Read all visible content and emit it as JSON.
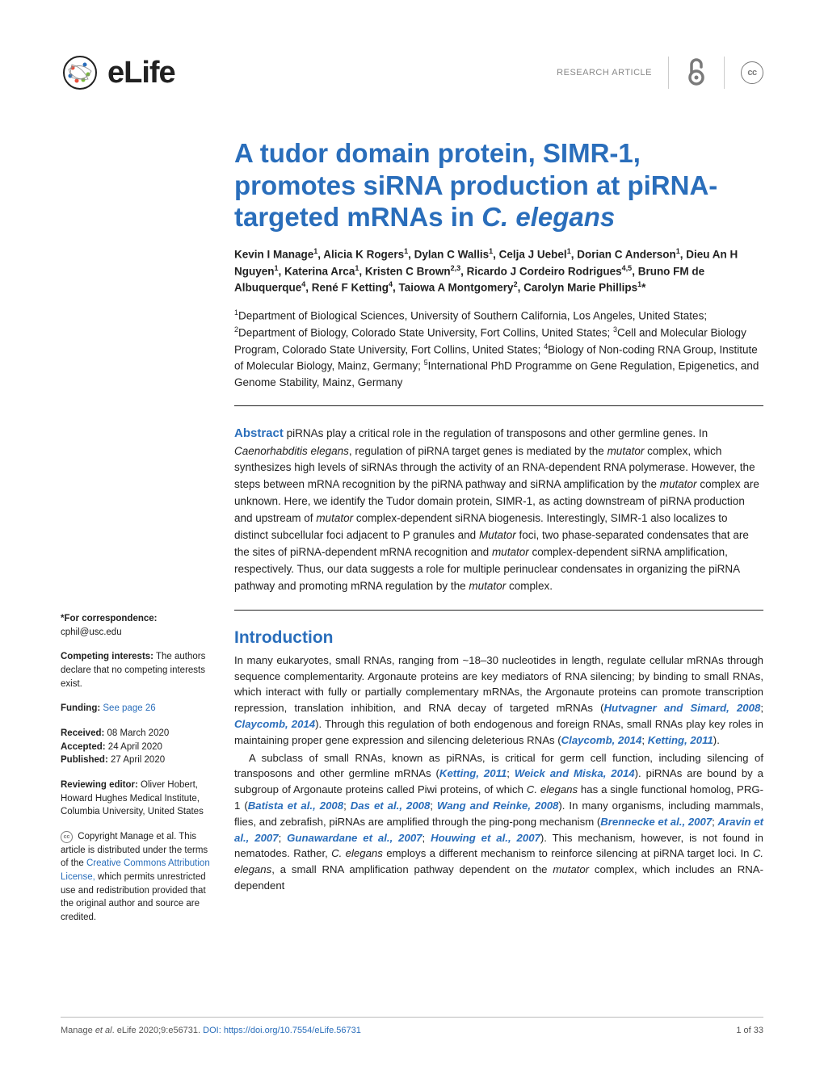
{
  "header": {
    "journal": "eLife",
    "section_label": "RESEARCH ARTICLE",
    "cc_label": "cc"
  },
  "title": {
    "line1": "A tudor domain protein, SIMR-1, promotes siRNA production at piRNA-targeted mRNAs in ",
    "line2_italic": "C. elegans"
  },
  "authors_html": "Kevin I Manage<sup>1</sup>, Alicia K Rogers<sup>1</sup>, Dylan C Wallis<sup>1</sup>, Celja J Uebel<sup>1</sup>, Dorian C Anderson<sup>1</sup>, Dieu An H Nguyen<sup>1</sup>, Katerina Arca<sup>1</sup>, Kristen C Brown<sup>2,3</sup>, Ricardo J Cordeiro Rodrigues<sup>4,5</sup>, Bruno FM de Albuquerque<sup>4</sup>, René F Ketting<sup>4</sup>, Taiowa A Montgomery<sup>2</sup>, Carolyn Marie Phillips<sup>1</sup>*",
  "affiliations_html": "<sup>1</sup>Department of Biological Sciences, University of Southern California, Los Angeles, United States; <sup>2</sup>Department of Biology, Colorado State University, Fort Collins, United States; <sup>3</sup>Cell and Molecular Biology Program, Colorado State University, Fort Collins, United States; <sup>4</sup>Biology of Non-coding RNA Group, Institute of Molecular Biology, Mainz, Germany; <sup>5</sup>International PhD Programme on Gene Regulation, Epigenetics, and Genome Stability, Mainz, Germany",
  "abstract": {
    "label": "Abstract",
    "text_html": " piRNAs play a critical role in the regulation of transposons and other germline genes. In <span class='italic'>Caenorhabditis elegans</span>, regulation of piRNA target genes is mediated by the <span class='italic'>mutator</span> complex, which synthesizes high levels of siRNAs through the activity of an RNA-dependent RNA polymerase. However, the steps between mRNA recognition by the piRNA pathway and siRNA amplification by the <span class='italic'>mutator</span> complex are unknown. Here, we identify the Tudor domain protein, SIMR-1, as acting downstream of piRNA production and upstream of <span class='italic'>mutator</span> complex-dependent siRNA biogenesis. Interestingly, SIMR-1 also localizes to distinct subcellular foci adjacent to P granules and <span class='italic'>Mutator</span> foci, two phase-separated condensates that are the sites of piRNA-dependent mRNA recognition and <span class='italic'>mutator</span> complex-dependent siRNA amplification, respectively. Thus, our data suggests a role for multiple perinuclear condensates in organizing the piRNA pathway and promoting mRNA regulation by the <span class='italic'>mutator</span> complex."
  },
  "intro": {
    "heading": "Introduction",
    "para1_html": "In many eukaryotes, small RNAs, ranging from ~18–30 nucleotides in length, regulate cellular mRNAs through sequence complementarity. Argonaute proteins are key mediators of RNA silencing; by binding to small RNAs, which interact with fully or partially complementary mRNAs, the Argonaute proteins can promote transcription repression, translation inhibition, and RNA decay of targeted mRNAs (<span class='ref'>Hutvagner and Simard, 2008</span>; <span class='ref'>Claycomb, 2014</span>). Through this regulation of both endogenous and foreign RNAs, small RNAs play key roles in maintaining proper gene expression and silencing deleterious RNAs (<span class='ref'>Claycomb, 2014</span>; <span class='ref'>Ketting, 2011</span>).",
    "para2_html": "A subclass of small RNAs, known as piRNAs, is critical for germ cell function, including silencing of transposons and other germline mRNAs (<span class='ref'>Ketting, 2011</span>; <span class='ref'>Weick and Miska, 2014</span>). piRNAs are bound by a subgroup of Argonaute proteins called Piwi proteins, of which <span class='italic'>C. elegans</span> has a single functional homolog, PRG-1 (<span class='ref'>Batista et al., 2008</span>; <span class='ref'>Das et al., 2008</span>; <span class='ref'>Wang and Reinke, 2008</span>). In many organisms, including mammals, flies, and zebrafish, piRNAs are amplified through the ping-pong mechanism (<span class='ref'>Brennecke et al., 2007</span>; <span class='ref'>Aravin et al., 2007</span>; <span class='ref'>Gunawardane et al., 2007</span>; <span class='ref'>Houwing et al., 2007</span>). This mechanism, however, is not found in nematodes. Rather, <span class='italic'>C. elegans</span> employs a different mechanism to reinforce silencing at piRNA target loci. In <span class='italic'>C. elegans</span>, a small RNA amplification pathway dependent on the <span class='italic'>mutator</span> complex, which includes an RNA-dependent"
  },
  "sidebar": {
    "corr_label": "*For correspondence:",
    "corr_email": "cphil@usc.edu",
    "competing_label": "Competing interests:",
    "competing_text": " The authors declare that no competing interests exist.",
    "funding_label": "Funding:",
    "funding_link": " See page 26",
    "received_label": "Received:",
    "received_val": " 08 March 2020",
    "accepted_label": "Accepted:",
    "accepted_val": " 24 April 2020",
    "published_label": "Published:",
    "published_val": " 27 April 2020",
    "editor_label": "Reviewing editor:",
    "editor_text": " Oliver Hobert, Howard Hughes Medical Institute, Columbia University, United States",
    "copyright_html": " Copyright Manage et al. This article is distributed under the terms of the <span class='link'>Creative Commons Attribution License,</span> which permits unrestricted use and redistribution provided that the original author and source are credited."
  },
  "footer": {
    "citation_pre": "Manage ",
    "citation_italic": "et al",
    "citation_post": ". eLife 2020;9:e56731. ",
    "doi_label": "DOI: https://doi.org/10.7554/eLife.56731",
    "page": "1 of 33"
  },
  "colors": {
    "link_blue": "#2a6ebb",
    "text": "#212121",
    "muted": "#888888"
  }
}
